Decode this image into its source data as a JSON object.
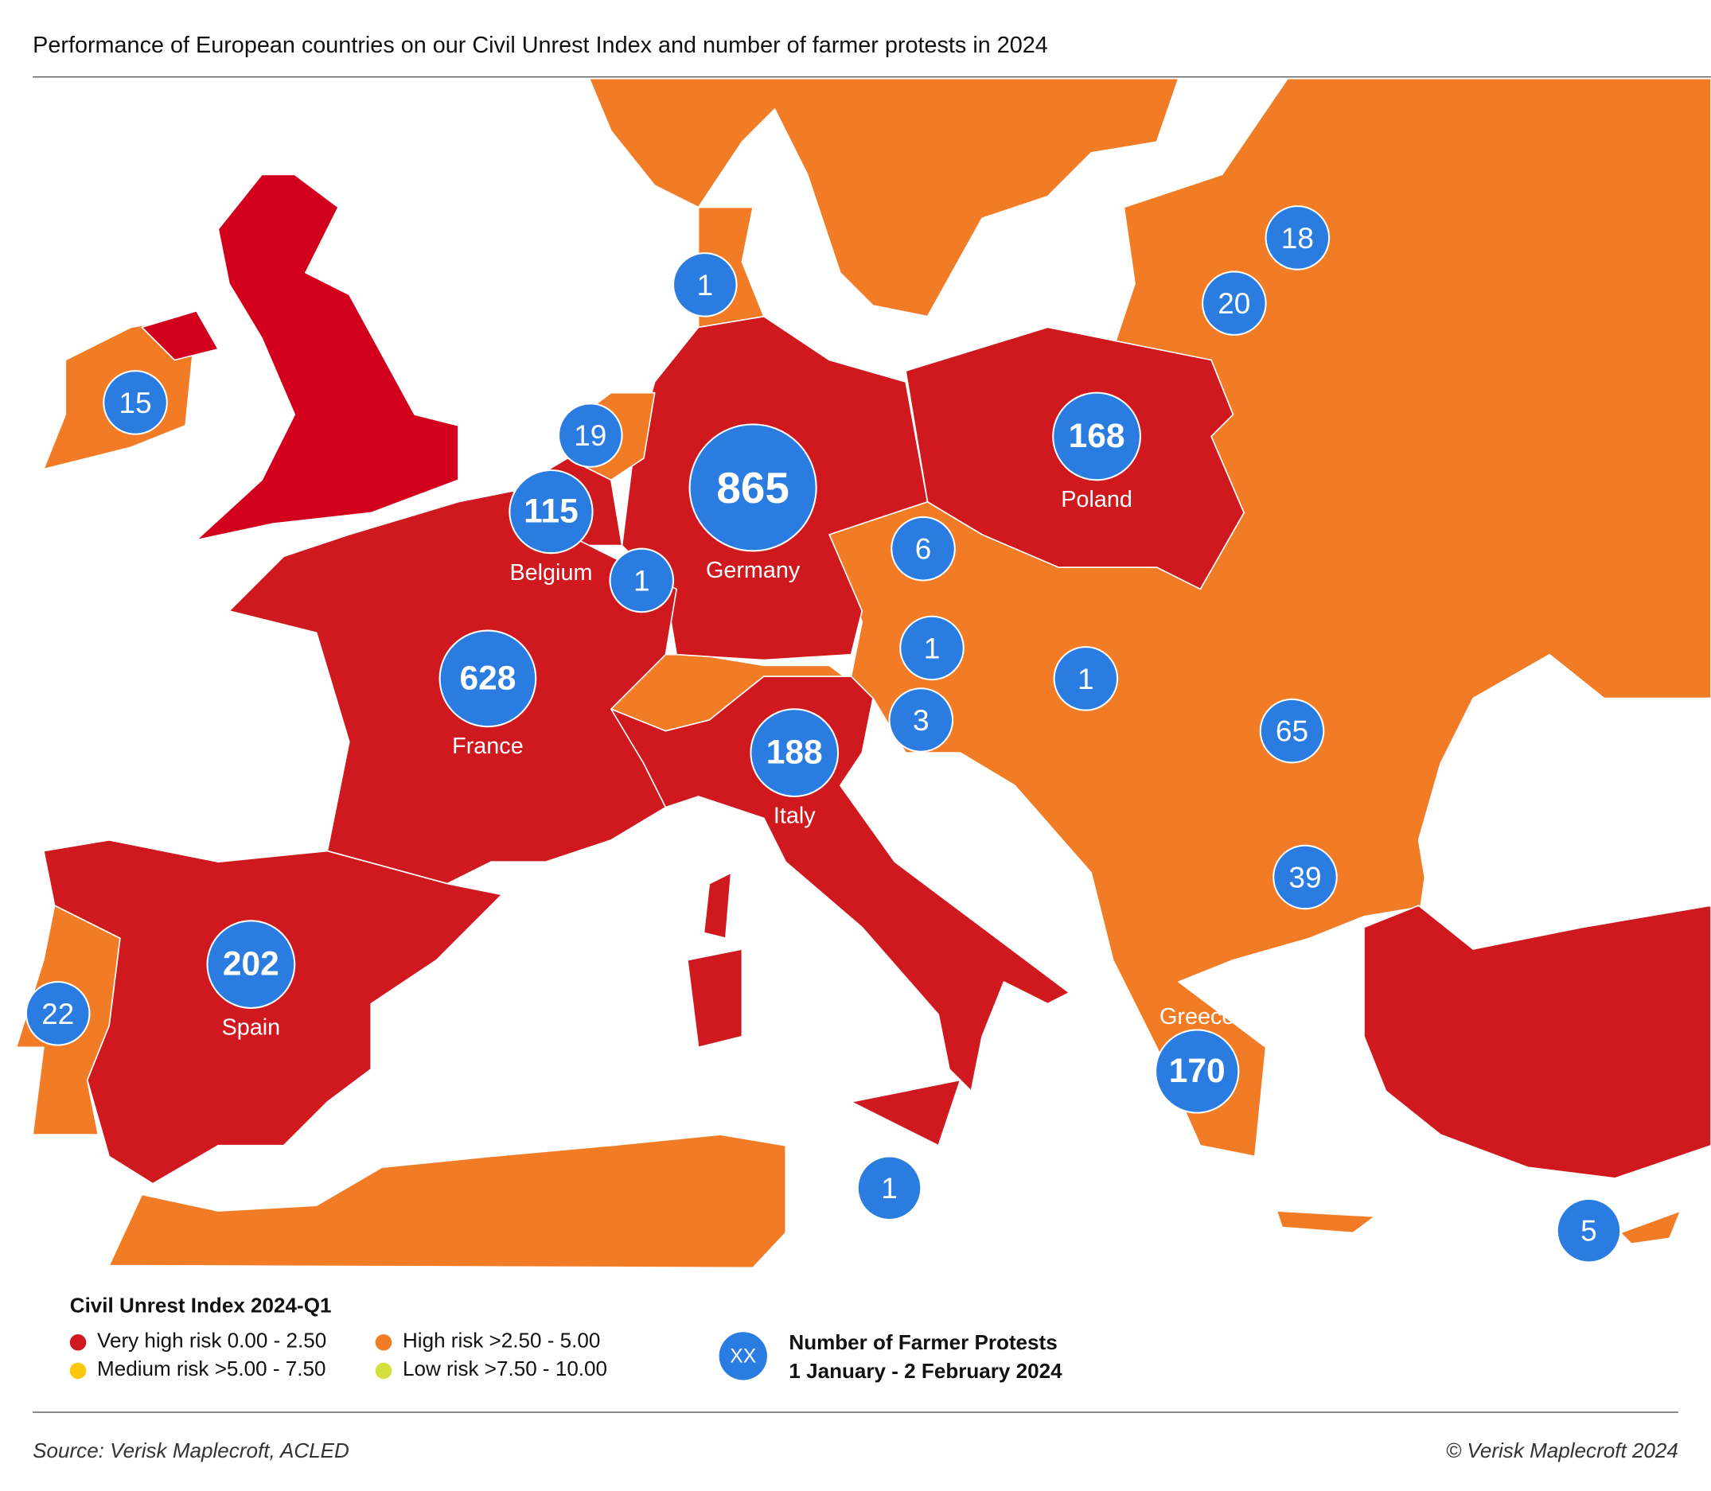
{
  "title": "Performance of European countries on our Civil Unrest Index and number of farmer protests in 2024",
  "colors": {
    "very_high": "#d0191f",
    "high": "#f27b25",
    "medium": "#fdc70c",
    "low": "#d4e03b",
    "bubble": "#2a7ce0",
    "uk_red": "#d2001c"
  },
  "legend": {
    "title": "Civil Unrest Index 2024-Q1",
    "items": [
      {
        "label": "Very high risk 0.00 - 2.50",
        "color": "#d0191f"
      },
      {
        "label": "High risk >2.50 - 5.00",
        "color": "#f27b25"
      },
      {
        "label": "Medium risk >5.00 - 7.50",
        "color": "#fdc70c"
      },
      {
        "label": "Low risk >7.50 - 10.00",
        "color": "#d4e03b"
      }
    ],
    "bubble_symbol": "XX",
    "bubble_line1": "Number of Farmer Protests",
    "bubble_line2": "1 January - 2 February 2024"
  },
  "protests": [
    {
      "country": "Germany",
      "count": "865",
      "label": "Germany"
    },
    {
      "country": "France",
      "count": "628",
      "label": "France"
    },
    {
      "country": "Spain",
      "count": "202",
      "label": "Spain"
    },
    {
      "country": "Italy",
      "count": "188",
      "label": "Italy"
    },
    {
      "country": "Greece",
      "count": "170",
      "label": "Greece"
    },
    {
      "country": "Poland",
      "count": "168",
      "label": "Poland"
    },
    {
      "country": "Belgium",
      "count": "115",
      "label": "Belgium"
    },
    {
      "country": "Romania",
      "count": "65",
      "label": ""
    },
    {
      "country": "Bulgaria",
      "count": "39",
      "label": ""
    },
    {
      "country": "Portugal",
      "count": "22",
      "label": ""
    },
    {
      "country": "Lithuania",
      "count": "20",
      "label": ""
    },
    {
      "country": "Netherlands",
      "count": "19",
      "label": ""
    },
    {
      "country": "Latvia",
      "count": "18",
      "label": ""
    },
    {
      "country": "Ireland",
      "count": "15",
      "label": ""
    },
    {
      "country": "Czechia",
      "count": "6",
      "label": ""
    },
    {
      "country": "Cyprus",
      "count": "5",
      "label": ""
    },
    {
      "country": "Slovenia",
      "count": "3",
      "label": ""
    },
    {
      "country": "Denmark",
      "count": "1",
      "label": ""
    },
    {
      "country": "Luxembourg",
      "count": "1",
      "label": ""
    },
    {
      "country": "Austria",
      "count": "1",
      "label": ""
    },
    {
      "country": "Hungary",
      "count": "1",
      "label": ""
    },
    {
      "country": "Malta",
      "count": "1",
      "label": ""
    }
  ],
  "footer": {
    "source": "Source: Verisk Maplecroft, ACLED",
    "copyright": "© Verisk Maplecroft 2024"
  }
}
